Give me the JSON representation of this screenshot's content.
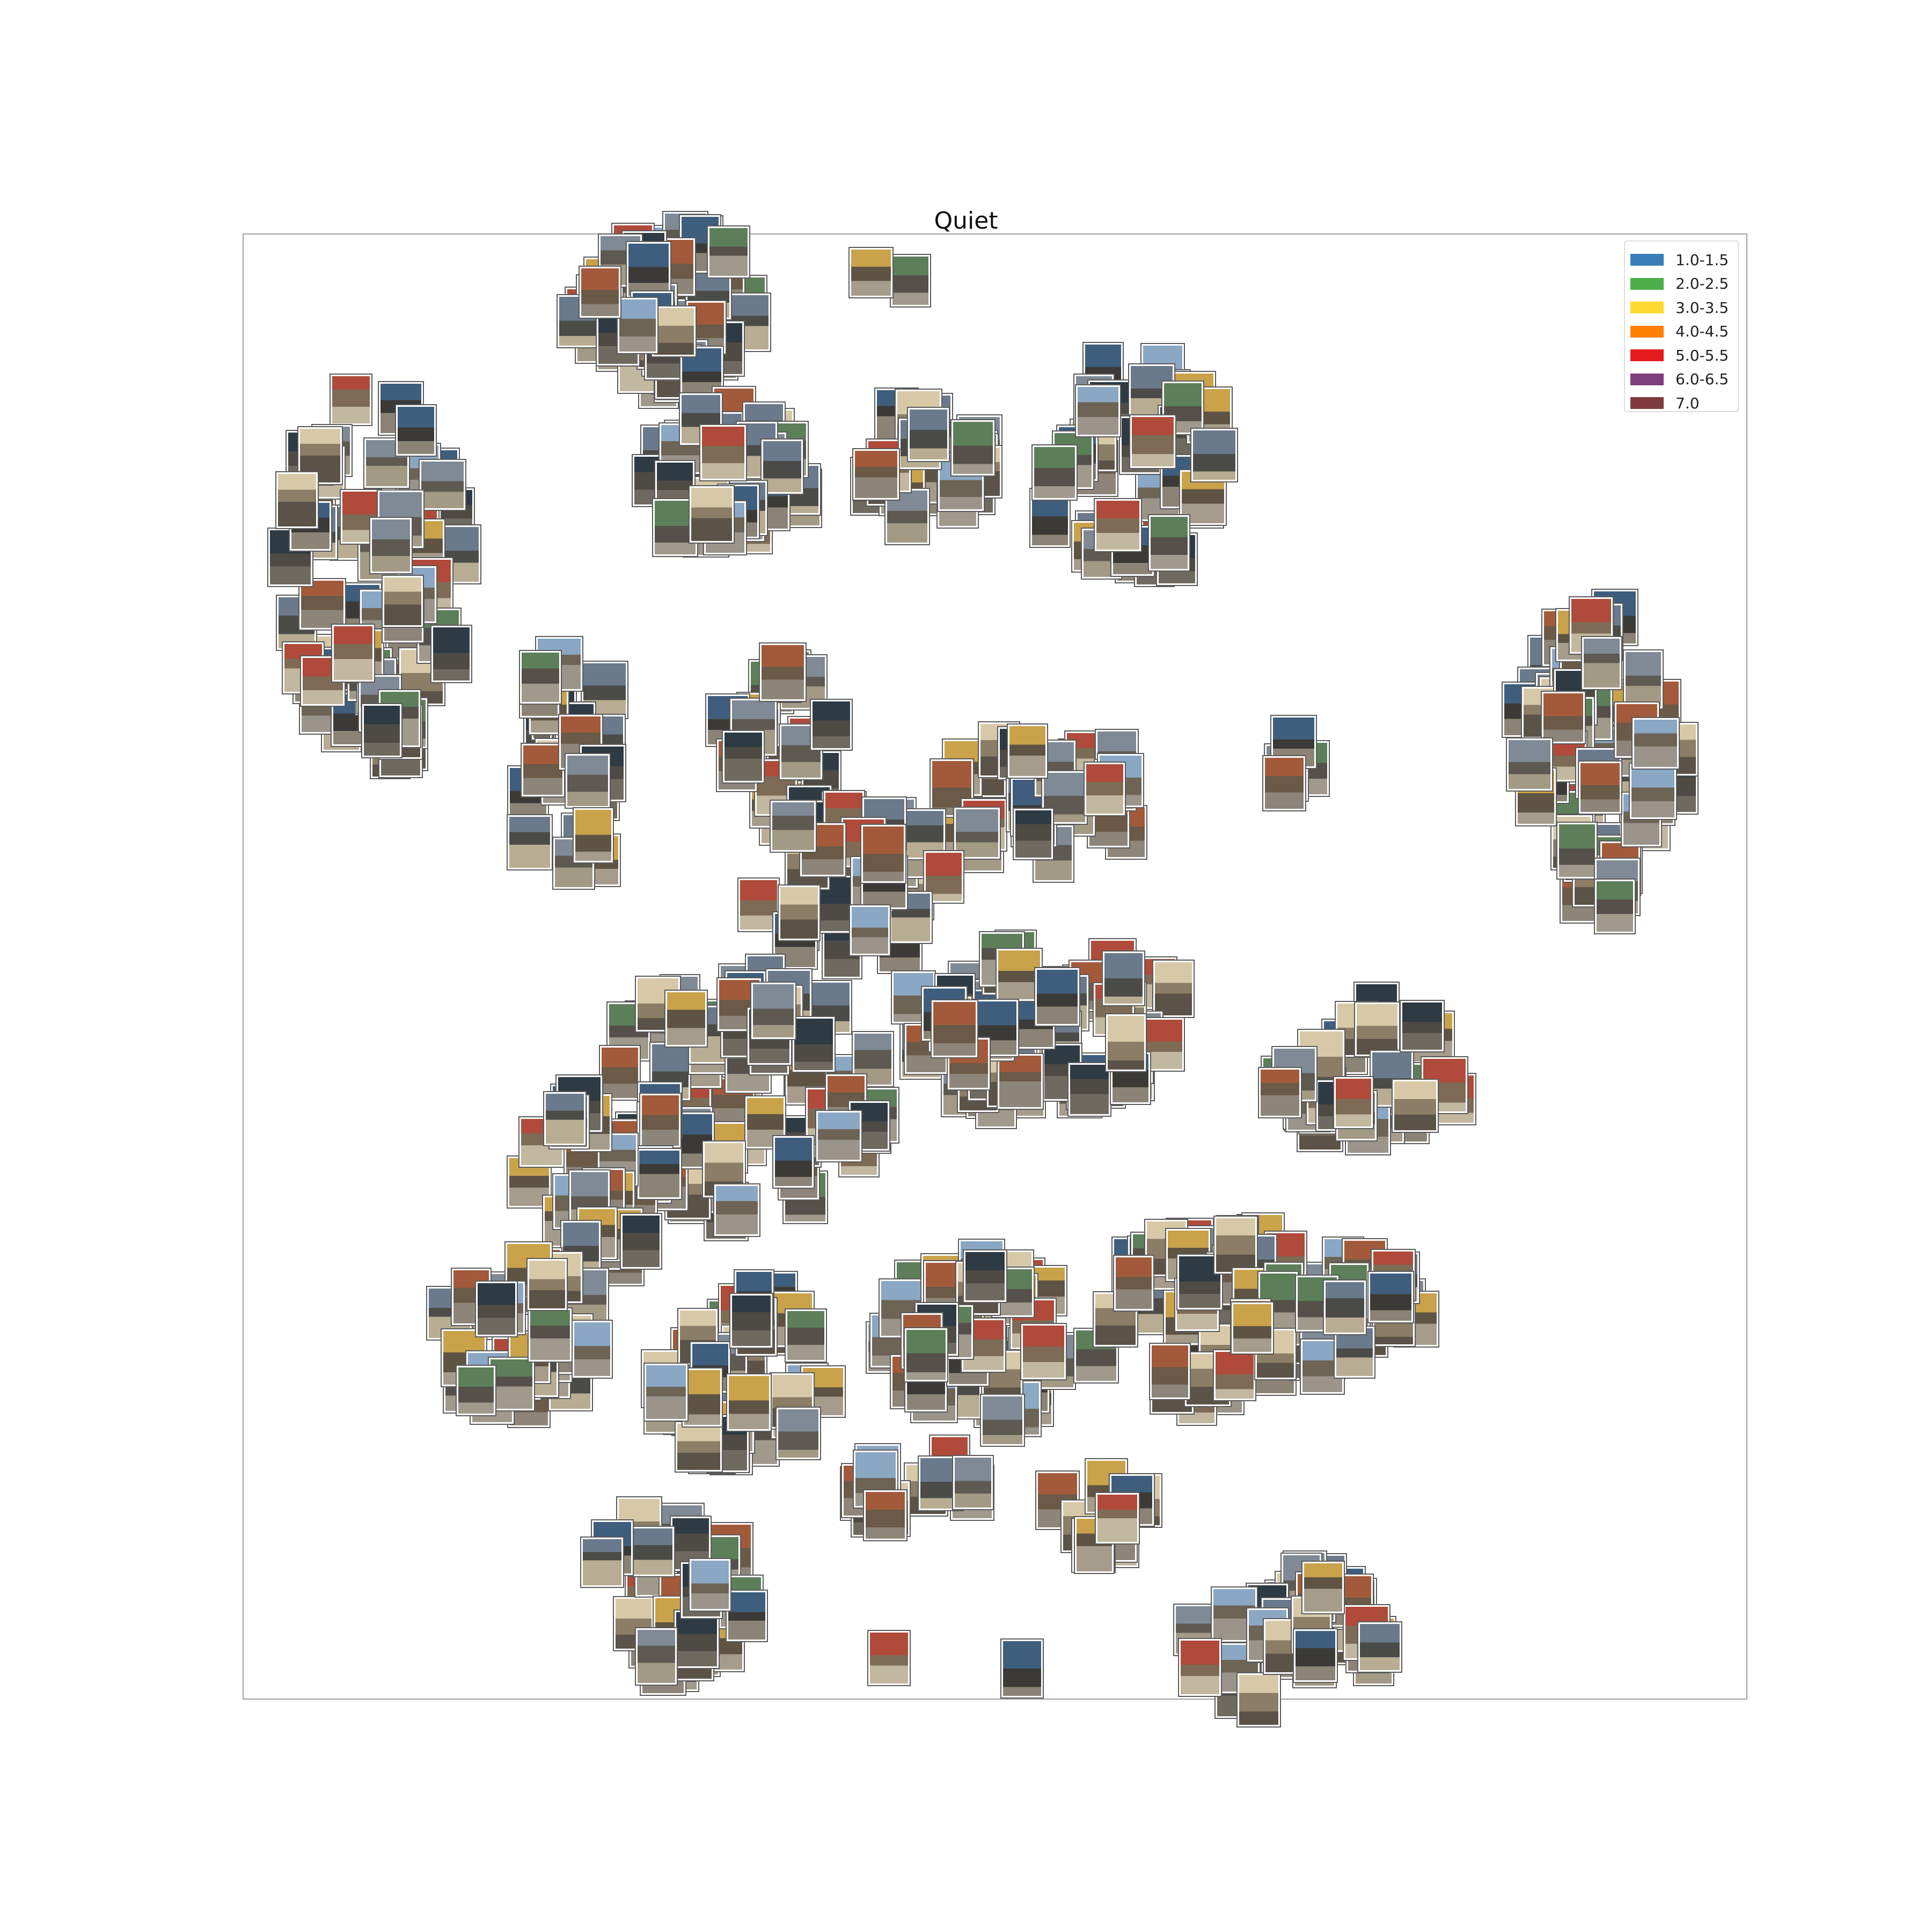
{
  "chart_data": {
    "type": "scatter",
    "title": "Quiet",
    "xlabel": "",
    "ylabel": "",
    "axes_visible": false,
    "marker": "image-thumbnail",
    "legend": {
      "placement": "top-right",
      "entries": [
        {
          "label": "1.0-1.5",
          "color": "#377eb8"
        },
        {
          "label": "2.0-2.5",
          "color": "#4daf4a"
        },
        {
          "label": "3.0-3.5",
          "color": "#ffd92f"
        },
        {
          "label": "4.0-4.5",
          "color": "#ff7f00"
        },
        {
          "label": "5.0-5.5",
          "color": "#e41a1c"
        },
        {
          "label": "6.0-6.5",
          "color": "#7f3f7f"
        },
        {
          "label": "7.0",
          "color": "#7f3b3b"
        }
      ]
    }
  }
}
